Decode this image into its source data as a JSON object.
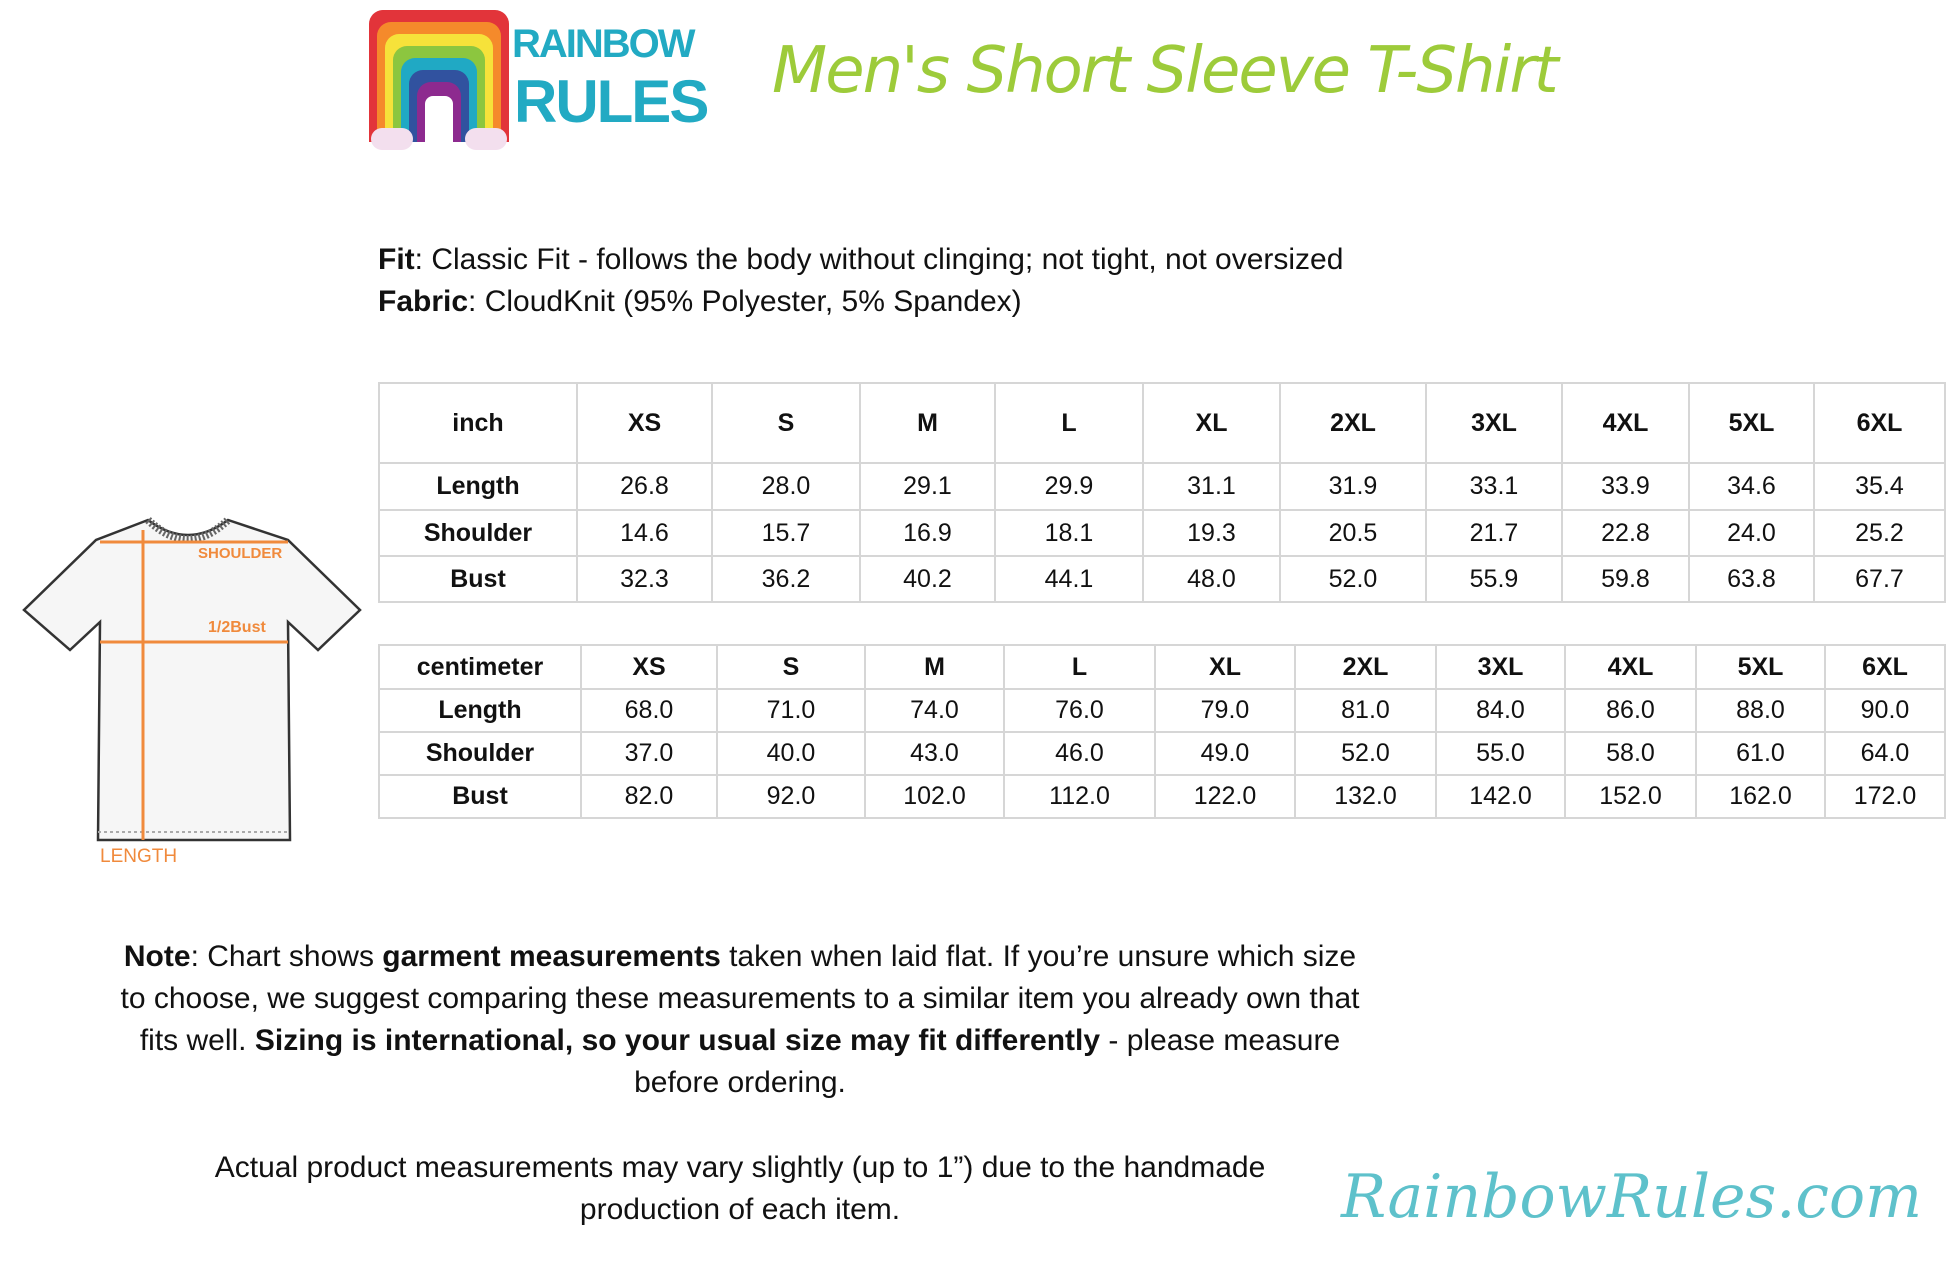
{
  "brand": {
    "logo_text_line1": "RAINBOW",
    "logo_text_line2": "RULES",
    "website": "RainbowRules.com",
    "accent_green": "#9dcb3a",
    "accent_teal": "#22aac3"
  },
  "title": "Men's Short Sleeve T-Shirt",
  "specs": {
    "fit_label": "Fit",
    "fit_value": ": Classic Fit - follows the body without clinging; not tight, not oversized",
    "fabric_label": "Fabric",
    "fabric_value": ": CloudKnit (95% Polyester, 5% Spandex)"
  },
  "diagram": {
    "shoulder_label": "SHOULDER",
    "bust_label": "1/2Bust",
    "length_label": "LENGTH"
  },
  "chart_data": [
    {
      "type": "table",
      "unit": "inch",
      "columns": [
        "XS",
        "S",
        "M",
        "L",
        "XL",
        "2XL",
        "3XL",
        "4XL",
        "5XL",
        "6XL"
      ],
      "rows": [
        {
          "label": "Length",
          "values": [
            "26.8",
            "28.0",
            "29.1",
            "29.9",
            "31.1",
            "31.9",
            "33.1",
            "33.9",
            "34.6",
            "35.4"
          ]
        },
        {
          "label": "Shoulder",
          "values": [
            "14.6",
            "15.7",
            "16.9",
            "18.1",
            "19.3",
            "20.5",
            "21.7",
            "22.8",
            "24.0",
            "25.2"
          ]
        },
        {
          "label": "Bust",
          "values": [
            "32.3",
            "36.2",
            "40.2",
            "44.1",
            "48.0",
            "52.0",
            "55.9",
            "59.8",
            "63.8",
            "67.7"
          ]
        }
      ]
    },
    {
      "type": "table",
      "unit": "centimeter",
      "columns": [
        "XS",
        "S",
        "M",
        "L",
        "XL",
        "2XL",
        "3XL",
        "4XL",
        "5XL",
        "6XL"
      ],
      "rows": [
        {
          "label": "Length",
          "values": [
            "68.0",
            "71.0",
            "74.0",
            "76.0",
            "79.0",
            "81.0",
            "84.0",
            "86.0",
            "88.0",
            "90.0"
          ]
        },
        {
          "label": "Shoulder",
          "values": [
            "37.0",
            "40.0",
            "43.0",
            "46.0",
            "49.0",
            "52.0",
            "55.0",
            "58.0",
            "61.0",
            "64.0"
          ]
        },
        {
          "label": "Bust",
          "values": [
            "82.0",
            "92.0",
            "102.0",
            "112.0",
            "122.0",
            "132.0",
            "142.0",
            "152.0",
            "162.0",
            "172.0"
          ]
        }
      ]
    }
  ],
  "note": {
    "p1_label": "Note",
    "p1_a": ": Chart shows ",
    "p1_b": "garment measurements",
    "p1_c": " taken when laid flat. If you’re unsure which size to choose, we suggest comparing these measurements to a similar item you already own that fits well. ",
    "p1_d": "Sizing is international, so your usual size may fit differently",
    "p1_e": " - please measure before ordering.",
    "p2": "Actual product measurements may vary slightly (up to 1”) due to the handmade production of each item."
  }
}
